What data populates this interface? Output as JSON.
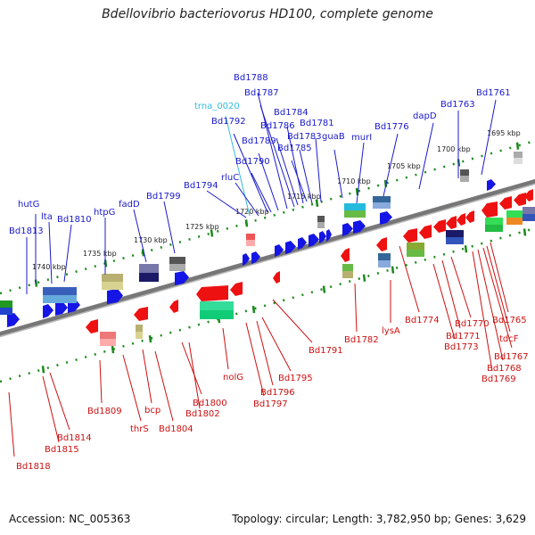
{
  "title": "Bdellovibrio bacteriovorus HD100, complete genome",
  "footer": {
    "accession": "Accession: NC_005363",
    "stats": "Topology: circular; Length: 3,782,950 bp; Genes: 3,629"
  },
  "colors": {
    "forward_label": "#1a1acc",
    "reverse_label": "#cc1111",
    "trna_label": "#33bbdd",
    "backbone": "#888888",
    "tick": "#1c8a1c"
  },
  "kbp_labels_top": [
    "1740 kbp",
    "1735 kbp",
    "1730 kbp",
    "1725 kbp",
    "1720 kbp",
    "1715 kbp",
    "1710 kbp",
    "1705 kbp",
    "1700 kbp",
    "1695 kbp"
  ],
  "top_labels": [
    {
      "text": "Bd1788",
      "color": "blue"
    },
    {
      "text": "Bd1787",
      "color": "blue"
    },
    {
      "text": "trna_0020",
      "color": "cyan"
    },
    {
      "text": "Bd1784",
      "color": "blue"
    },
    {
      "text": "Bd1792",
      "color": "blue"
    },
    {
      "text": "Bd1786",
      "color": "blue"
    },
    {
      "text": "Bd1781",
      "color": "blue"
    },
    {
      "text": "Bd1783",
      "color": "blue"
    },
    {
      "text": "guaB",
      "color": "blue"
    },
    {
      "text": "Bd1789",
      "color": "blue"
    },
    {
      "text": "Bd1785",
      "color": "blue"
    },
    {
      "text": "Bd1790",
      "color": "blue"
    },
    {
      "text": "rluC",
      "color": "blue"
    },
    {
      "text": "Bd1794",
      "color": "blue"
    },
    {
      "text": "Bd1799",
      "color": "blue"
    },
    {
      "text": "fadD",
      "color": "blue"
    },
    {
      "text": "htpG",
      "color": "blue"
    },
    {
      "text": "hutG",
      "color": "blue"
    },
    {
      "text": "lta",
      "color": "blue"
    },
    {
      "text": "Bd1810",
      "color": "blue"
    },
    {
      "text": "Bd1813",
      "color": "blue"
    },
    {
      "text": "murI",
      "color": "blue"
    },
    {
      "text": "Bd1776",
      "color": "blue"
    },
    {
      "text": "dapD",
      "color": "blue"
    },
    {
      "text": "Bd1763",
      "color": "blue"
    },
    {
      "text": "Bd1761",
      "color": "blue"
    }
  ],
  "bottom_labels": [
    {
      "text": "Bd1818"
    },
    {
      "text": "Bd1815"
    },
    {
      "text": "Bd1814"
    },
    {
      "text": "Bd1809"
    },
    {
      "text": "thrS"
    },
    {
      "text": "bcp"
    },
    {
      "text": "Bd1804"
    },
    {
      "text": "Bd1800"
    },
    {
      "text": "Bd1802"
    },
    {
      "text": "nolG"
    },
    {
      "text": "Bd1797"
    },
    {
      "text": "Bd1796"
    },
    {
      "text": "Bd1795"
    },
    {
      "text": "Bd1791"
    },
    {
      "text": "Bd1782"
    },
    {
      "text": "lysA"
    },
    {
      "text": "Bd1774"
    },
    {
      "text": "Bd1773"
    },
    {
      "text": "Bd1771"
    },
    {
      "text": "Bd1770"
    },
    {
      "text": "Bd1769"
    },
    {
      "text": "Bd1768"
    },
    {
      "text": "Bd1767"
    },
    {
      "text": "tdcF"
    },
    {
      "text": "Bd1765"
    }
  ]
}
